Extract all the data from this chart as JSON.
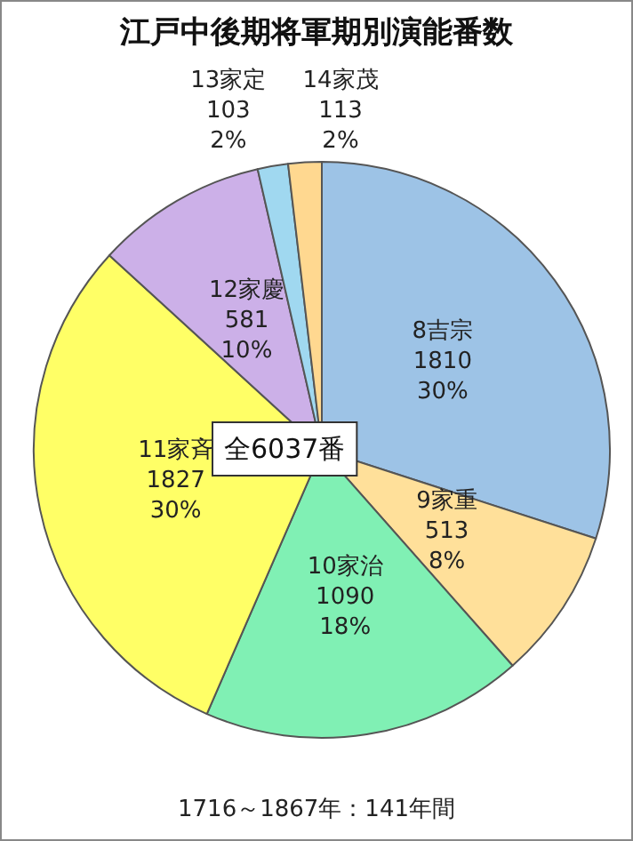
{
  "chart_data": {
    "type": "pie",
    "title": "江戸中後期将軍期別演能番数",
    "categories": [
      "8吉宗",
      "9家重",
      "10家治",
      "11家斉",
      "12家慶",
      "13家定",
      "14家茂"
    ],
    "values": [
      1810,
      513,
      1090,
      1827,
      581,
      103,
      113
    ],
    "colors": [
      "#9dc3e6",
      "#ffe09a",
      "#80f0b4",
      "#ffff66",
      "#ccb0e8",
      "#a0d8f0",
      "#ffd890"
    ],
    "value_labels": [
      "1810\n30%",
      "513\n8%",
      "1090\n18%",
      "1827\n30%",
      "581\n10%",
      "103\n2%",
      "113\n2%"
    ],
    "annotations": [
      "全6037番",
      "1716～1867年：141年間"
    ],
    "legend": false
  }
}
